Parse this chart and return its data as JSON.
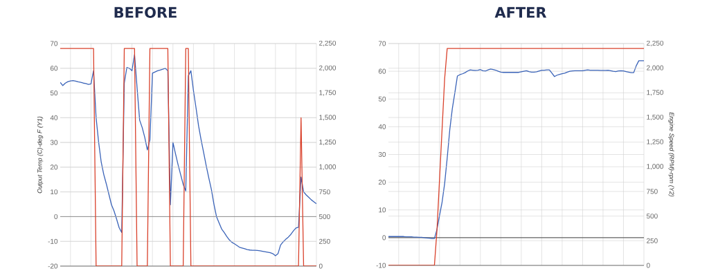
{
  "chart_data": [
    {
      "type": "line",
      "title": "BEFORE",
      "ylabel": "Output Temp (C)-deg F (Y1)",
      "categories": [
        null,
        null,
        null,
        null,
        null,
        null,
        null,
        null,
        null,
        null,
        null,
        null,
        null,
        null,
        null,
        null,
        null,
        null,
        null,
        null,
        null,
        null,
        null,
        null,
        null,
        null,
        null,
        null,
        null,
        null,
        null,
        null,
        null,
        null,
        null,
        null,
        null,
        null,
        null,
        null,
        null,
        null,
        null,
        null,
        null,
        null,
        null,
        null,
        null,
        null,
        null,
        null,
        null,
        null,
        null,
        null,
        null,
        null,
        null,
        null,
        null,
        null,
        null,
        null,
        null,
        null,
        null,
        null,
        null,
        null,
        null,
        null,
        null,
        null,
        null,
        null,
        null,
        null,
        null,
        null,
        null,
        null,
        null,
        null,
        null,
        null,
        null,
        null,
        null,
        null,
        null,
        null,
        null,
        null,
        null,
        null,
        null,
        null,
        null,
        null,
        null
      ],
      "ylim": [
        -20,
        70
      ],
      "yticks": [
        -20,
        -10,
        0,
        10,
        20,
        30,
        40,
        50,
        60,
        70
      ],
      "y2lim": [
        0,
        2250
      ],
      "y2ticks": [
        0,
        250,
        500,
        750,
        {
          "value": 1000,
          "label": "1,000"
        },
        {
          "value": 1250,
          "label": "1,250"
        },
        {
          "value": 1500,
          "label": "1,500"
        },
        {
          "value": 1750,
          "label": "1,750"
        },
        {
          "value": 2000,
          "label": "2,000"
        },
        {
          "value": 2250,
          "label": "2,250"
        }
      ],
      "grid": true,
      "tick_labels": "y",
      "ref_lines": [
        {
          "axis": "y",
          "value": 0,
          "color": "#333333"
        }
      ],
      "series": [
        {
          "color": "#3a63b8",
          "values": [
            54.3,
            53,
            54,
            54.6,
            54.9,
            55,
            54.8,
            54.5,
            54.3,
            54,
            53.8,
            53.5,
            53.7,
            59,
            40,
            30,
            22,
            17,
            13.2,
            9,
            4.8,
            2.3,
            -1,
            -4.5,
            -6.4,
            54,
            60.3,
            60,
            59,
            65.5,
            52,
            39,
            36,
            32,
            27,
            31,
            58,
            58.5,
            59,
            59.3,
            59.6,
            60,
            59,
            4.8,
            30,
            25.4,
            21,
            17,
            13,
            10.4,
            57,
            59,
            51,
            44,
            36.7,
            31,
            25.8,
            20.5,
            15.6,
            11,
            5,
            0,
            -2.5,
            -5,
            -6.4,
            -8,
            -9.4,
            -10.4,
            -11,
            -11.7,
            -12.4,
            -12.7,
            -13,
            -13.3,
            -13.5,
            -13.6,
            -13.6,
            -13.7,
            -13.8,
            -14,
            -14.2,
            -14.4,
            -14.6,
            -15,
            -15.8,
            -15,
            -11.5,
            -10.2,
            -9.2,
            -8.3,
            -7.2,
            -5.8,
            -4.6,
            -4.3,
            16,
            10,
            8.8,
            7.8,
            6.8,
            6,
            5.2
          ]
        },
        {
          "color": "#d9412b",
          "axis": "y2",
          "values": [
            2200,
            2200,
            2200,
            2200,
            2200,
            2200,
            2200,
            2200,
            2200,
            2200,
            2200,
            2200,
            2200,
            2200,
            0,
            0,
            0,
            0,
            0,
            0,
            0,
            0,
            0,
            0,
            0,
            2200,
            2200,
            2200,
            2200,
            2200,
            0,
            0,
            0,
            0,
            0,
            2200,
            2200,
            2200,
            2200,
            2200,
            2200,
            2200,
            2200,
            0,
            0,
            0,
            0,
            0,
            0,
            2200,
            2200,
            0,
            0,
            0,
            0,
            0,
            0,
            0,
            0,
            0,
            0,
            0,
            0,
            0,
            0,
            0,
            0,
            0,
            0,
            0,
            0,
            0,
            0,
            0,
            0,
            0,
            0,
            0,
            0,
            0,
            0,
            0,
            0,
            0,
            0,
            0,
            0,
            0,
            0,
            0,
            0,
            0,
            0,
            0,
            1500,
            0,
            0,
            0,
            0,
            0,
            0
          ]
        }
      ]
    },
    {
      "type": "line",
      "title": "AFTER",
      "y2label": "Engine Speed (RPM)-rpm (Y2)",
      "categories": [
        null,
        null,
        null,
        null,
        null,
        null,
        null,
        null,
        null,
        null,
        null,
        null,
        null,
        null,
        null,
        null,
        null,
        null,
        null,
        null,
        null,
        null,
        null,
        null,
        null,
        null,
        null,
        null,
        null,
        null,
        null,
        null,
        null,
        null,
        null,
        null,
        null,
        null,
        null,
        null,
        null,
        null,
        null,
        null,
        null,
        null,
        null,
        null,
        null,
        null,
        null,
        null,
        null,
        null,
        null,
        null,
        null,
        null,
        null,
        null,
        null,
        null,
        null,
        null,
        null,
        null,
        null,
        null,
        null,
        null,
        null,
        null,
        null,
        null,
        null,
        null,
        null,
        null,
        null,
        null,
        null,
        null,
        null,
        null,
        null,
        null,
        null,
        null,
        null,
        null,
        null,
        null,
        null,
        null,
        null,
        null,
        null,
        null,
        null,
        null,
        null
      ],
      "ylim": [
        -10,
        70
      ],
      "yticks": [
        -10,
        0,
        10,
        20,
        30,
        40,
        50,
        60,
        70
      ],
      "y2lim": [
        0,
        2250
      ],
      "y2ticks": [
        0,
        250,
        500,
        750,
        {
          "value": 1000,
          "label": "1,000"
        },
        {
          "value": 1250,
          "label": "1,250"
        },
        {
          "value": 1500,
          "label": "1,500"
        },
        {
          "value": 1750,
          "label": "1,750"
        },
        {
          "value": 2000,
          "label": "2,000"
        },
        {
          "value": 2250,
          "label": "2,250"
        }
      ],
      "grid": true,
      "tick_labels": "y",
      "ref_lines": [
        {
          "axis": "y",
          "value": 0,
          "color": "#333333"
        }
      ],
      "series": [
        {
          "color": "#3a63b8",
          "values": [
            0.4,
            0.4,
            0.4,
            0.4,
            0.4,
            0.4,
            0.4,
            0.3,
            0.3,
            0.3,
            0.2,
            0.2,
            0.1,
            0.1,
            0,
            -0.1,
            -0.2,
            -0.3,
            -0.3,
            3,
            8,
            12.8,
            19.5,
            28.7,
            38.8,
            46.5,
            52.3,
            58.3,
            58.8,
            59.1,
            59.5,
            60.1,
            60.5,
            60.4,
            60.3,
            60.4,
            60.6,
            60.2,
            60.1,
            60.5,
            60.8,
            60.6,
            60.4,
            60,
            59.7,
            59.6,
            59.6,
            59.6,
            59.6,
            59.6,
            59.6,
            59.6,
            59.8,
            60,
            60.2,
            59.9,
            59.7,
            59.7,
            59.8,
            60.1,
            60.4,
            60.4,
            60.5,
            60.5,
            59.3,
            58.1,
            58.6,
            58.9,
            59.1,
            59.3,
            59.7,
            60,
            60.1,
            60.2,
            60.2,
            60.2,
            60.2,
            60.4,
            60.5,
            60.4,
            60.4,
            60.4,
            60.4,
            60.3,
            60.3,
            60.3,
            60.4,
            60.2,
            60,
            59.9,
            60.1,
            60.2,
            60.1,
            59.9,
            59.7,
            59.5,
            59.5,
            62,
            63.8,
            63.8,
            63.8
          ]
        },
        {
          "color": "#d9412b",
          "axis": "y2",
          "values": [
            0,
            0,
            0,
            0,
            0,
            0,
            0,
            0,
            0,
            0,
            0,
            0,
            0,
            0,
            0,
            0,
            0,
            0,
            0,
            358,
            870,
            1382,
            1893,
            2200,
            2200,
            2200,
            2200,
            2200,
            2200,
            2200,
            2200,
            2200,
            2200,
            2200,
            2200,
            2200,
            2200,
            2200,
            2200,
            2200,
            2200,
            2200,
            2200,
            2200,
            2200,
            2200,
            2200,
            2200,
            2200,
            2200,
            2200,
            2200,
            2200,
            2200,
            2200,
            2200,
            2200,
            2200,
            2200,
            2200,
            2200,
            2200,
            2200,
            2200,
            2200,
            2200,
            2200,
            2200,
            2200,
            2200,
            2200,
            2200,
            2200,
            2200,
            2200,
            2200,
            2200,
            2200,
            2200,
            2200,
            2200,
            2200,
            2200,
            2200,
            2200,
            2200,
            2200,
            2200,
            2200,
            2200,
            2200,
            2200,
            2200,
            2200,
            2200,
            2200,
            2200,
            2200,
            2200,
            2200,
            2200
          ]
        }
      ]
    }
  ]
}
